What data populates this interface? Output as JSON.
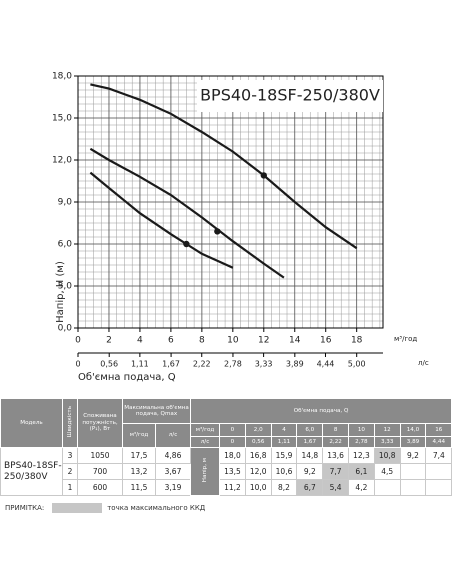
{
  "chart_data": {
    "type": "line",
    "title": "BPS40-18SF-250/380V",
    "ylabel": "Напір, H (м)",
    "xlabel": "Об'ємна подача, Q",
    "xunit": "м³/год",
    "x2unit": "л/с",
    "xlim": [
      0,
      19.7
    ],
    "ylim": [
      0,
      18
    ],
    "xticks": [
      0,
      2,
      4,
      6,
      8,
      10,
      12,
      14,
      16,
      18
    ],
    "yticks": [
      {
        "value": 0,
        "label": "0,0"
      },
      {
        "value": 3,
        "label": "3,0"
      },
      {
        "value": 6,
        "label": "6,0"
      },
      {
        "value": 9,
        "label": "9,0"
      },
      {
        "value": 12,
        "label": "12,0"
      },
      {
        "value": 15,
        "label": "15,0"
      },
      {
        "value": 18,
        "label": "18,0"
      }
    ],
    "x2lim": [
      0,
      5.472
    ],
    "x2ticks": [
      0,
      {
        "value": 0.56,
        "label": "0,56"
      },
      {
        "value": 1.11,
        "label": "1,11"
      },
      {
        "value": 1.67,
        "label": "1,67"
      },
      {
        "value": 2.22,
        "label": "2,22"
      },
      {
        "value": 2.78,
        "label": "2,78"
      },
      {
        "value": 3.33,
        "label": "3,33"
      },
      {
        "value": 3.89,
        "label": "3,89"
      },
      {
        "value": 4.44,
        "label": "4,44"
      },
      {
        "value": 5,
        "label": "5,00"
      }
    ],
    "grid": true,
    "series": [
      {
        "color": "#1a1a1a",
        "x": [
          0.8,
          2,
          4,
          6,
          8,
          10,
          12,
          14,
          16,
          18
        ],
        "values": [
          17.4,
          17.1,
          16.3,
          15.3,
          14.0,
          12.6,
          10.9,
          9.0,
          7.2,
          5.7
        ],
        "marker": {
          "x": 12,
          "y": 10.9
        }
      },
      {
        "color": "#1a1a1a",
        "x": [
          0.8,
          2,
          4,
          6,
          8,
          10,
          12,
          13.3
        ],
        "values": [
          12.8,
          12.0,
          10.8,
          9.5,
          7.9,
          6.2,
          4.6,
          3.6
        ],
        "marker": {
          "x": 9,
          "y": 6.9
        }
      },
      {
        "color": "#1a1a1a",
        "x": [
          0.8,
          2,
          4,
          6,
          7,
          8,
          9,
          10
        ],
        "values": [
          11.1,
          10.0,
          8.2,
          6.7,
          6.0,
          5.3,
          4.8,
          4.3
        ],
        "marker": {
          "x": 7,
          "y": 6.0
        }
      }
    ]
  },
  "table": {
    "header": {
      "model": "Модель",
      "speed": "Швидкість",
      "power": "Споживана потужність, (P₁), Вт",
      "qmax": "Максимальна об'ємна подача, Qmax",
      "qmax_units": [
        "м³/год",
        "л/с"
      ],
      "flow": "Об'ємна подача, Q",
      "flow_units": [
        "м³/год",
        "л/с"
      ],
      "flow_m3": [
        "0",
        "2,0",
        "4",
        "6,0",
        "8",
        "10",
        "12",
        "14,0",
        "16"
      ],
      "flow_ls": [
        "0",
        "0,56",
        "1,11",
        "1,67",
        "2,22",
        "2,78",
        "3,33",
        "3,89",
        "4,44"
      ],
      "head": "Напір, м"
    },
    "model": "BPS40-18SF-250/380V",
    "rows": [
      {
        "speed": "3",
        "power": "1050",
        "qmax_m3": "17,5",
        "qmax_ls": "4,86",
        "head": [
          "18,0",
          "16,8",
          "15,9",
          "14,8",
          "13,6",
          "12,3",
          "10,8",
          "9,2",
          "7,4"
        ],
        "highlighted": [
          6
        ]
      },
      {
        "speed": "2",
        "power": "700",
        "qmax_m3": "13,2",
        "qmax_ls": "3,67",
        "head": [
          "13,5",
          "12,0",
          "10,6",
          "9,2",
          "7,7",
          "6,1",
          "4,5"
        ],
        "highlighted": [
          4,
          5
        ]
      },
      {
        "speed": "1",
        "power": "600",
        "qmax_m3": "11,5",
        "qmax_ls": "3,19",
        "head": [
          "11,2",
          "10,0",
          "8,2",
          "6,7",
          "5,4",
          "4,2"
        ],
        "highlighted": [
          3,
          4
        ]
      }
    ]
  },
  "note": {
    "label": "ПРИМІТКА:",
    "text": "точка максимального ККД"
  }
}
